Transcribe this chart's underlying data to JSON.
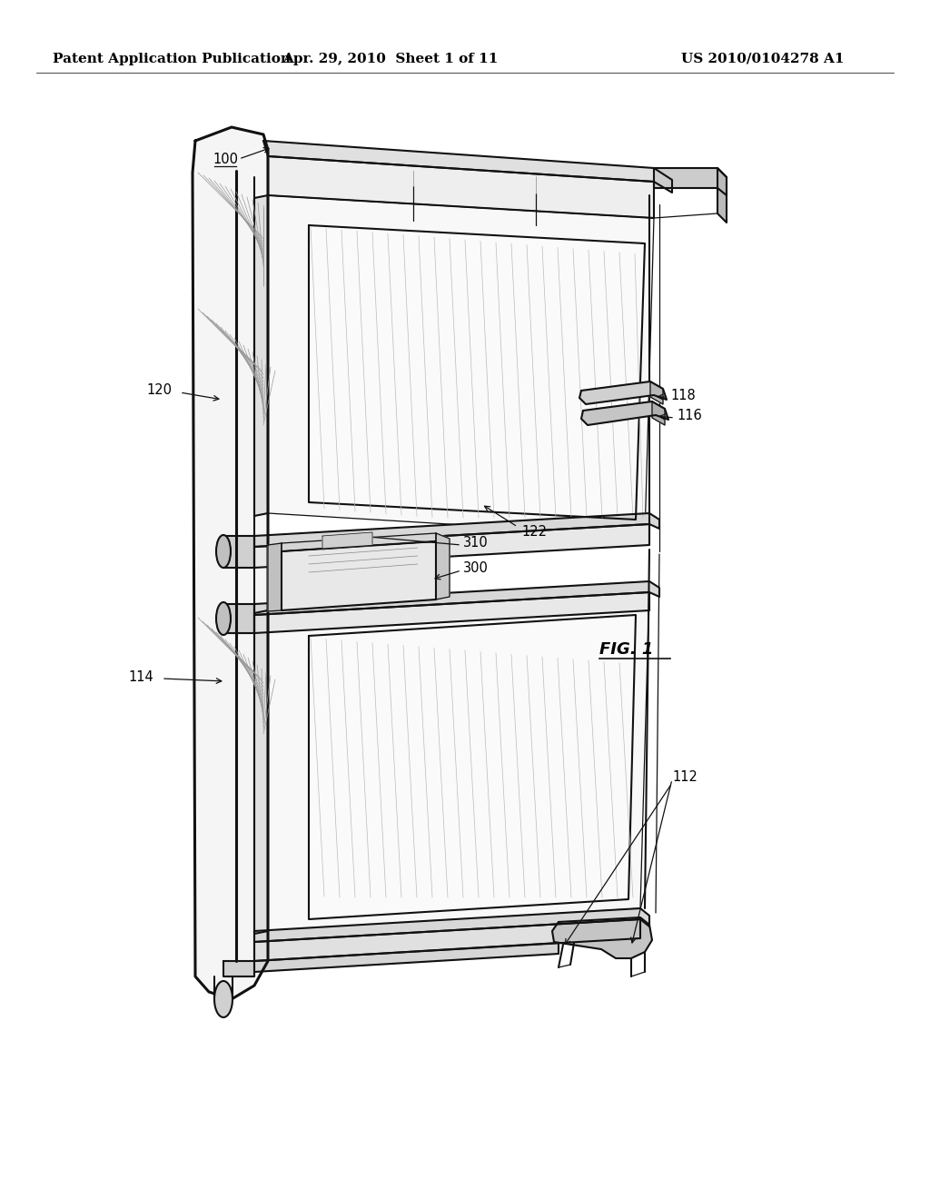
{
  "header_left": "Patent Application Publication",
  "header_mid": "Apr. 29, 2010  Sheet 1 of 11",
  "header_right": "US 2010/0104278 A1",
  "fig_label": "FIG. 1",
  "background": "#ffffff",
  "line_color": "#111111",
  "gray_light": "#f2f2f2",
  "gray_mid": "#d8d8d8",
  "gray_dark": "#b0b0b0",
  "hatch_color": "#999999",
  "header_fontsize": 11,
  "label_fontsize": 10.5
}
